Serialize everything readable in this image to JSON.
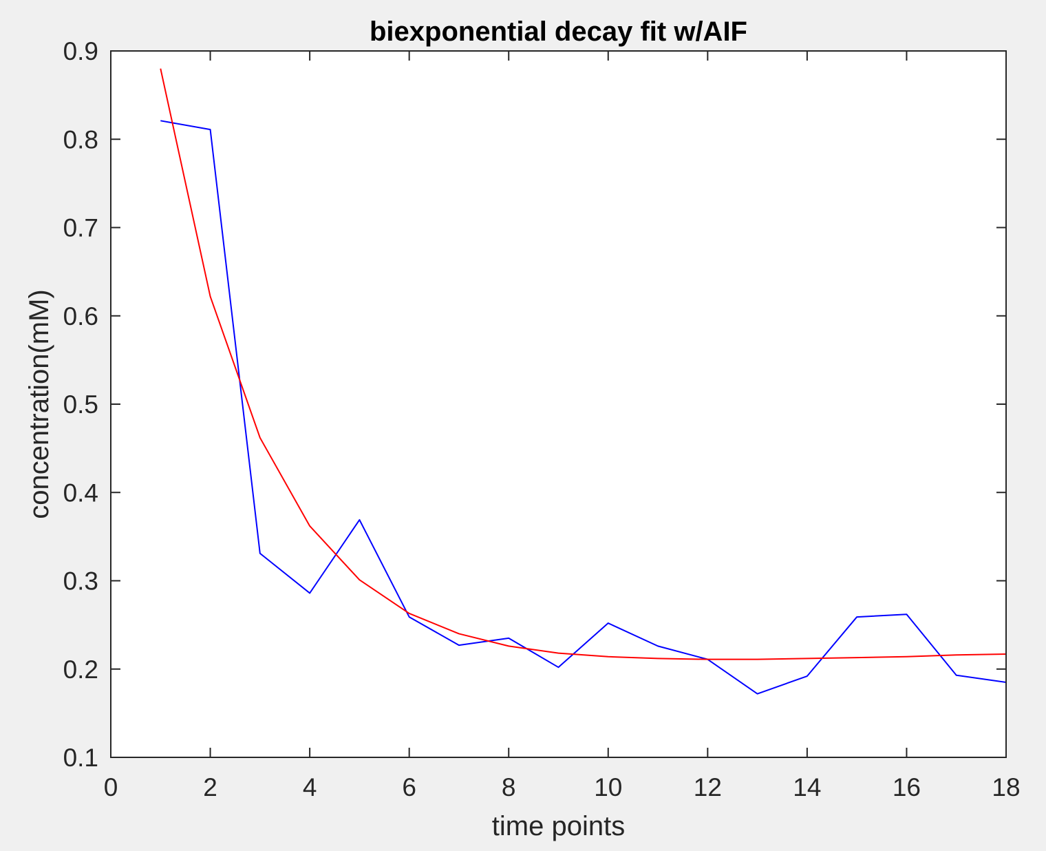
{
  "chart_data": {
    "type": "line",
    "title": "biexponential decay fit w/AIF",
    "xlabel": "time points",
    "ylabel": "concentration(mM)",
    "xlim": [
      0,
      18
    ],
    "ylim": [
      0.1,
      0.9
    ],
    "xticks": [
      0,
      2,
      4,
      6,
      8,
      10,
      12,
      14,
      16,
      18
    ],
    "yticks": [
      0.1,
      0.2,
      0.3,
      0.4,
      0.5,
      0.6,
      0.7,
      0.8,
      0.9
    ],
    "xtick_labels": [
      "0",
      "2",
      "4",
      "6",
      "8",
      "10",
      "12",
      "14",
      "16",
      "18"
    ],
    "ytick_labels": [
      "0.1",
      "0.2",
      "0.3",
      "0.4",
      "0.5",
      "0.6",
      "0.7",
      "0.8",
      "0.9"
    ],
    "grid": false,
    "legend": false,
    "series": [
      {
        "color": "#0000ff",
        "x": [
          1,
          2,
          3,
          4,
          5,
          6,
          7,
          8,
          9,
          10,
          11,
          12,
          13,
          14,
          15,
          16,
          17,
          18
        ],
        "y": [
          0.821,
          0.811,
          0.331,
          0.286,
          0.369,
          0.259,
          0.227,
          0.235,
          0.202,
          0.252,
          0.226,
          0.211,
          0.172,
          0.192,
          0.259,
          0.262,
          0.193,
          0.185
        ]
      },
      {
        "color": "#ff0000",
        "x": [
          1,
          2,
          3,
          4,
          5,
          6,
          7,
          8,
          9,
          10,
          11,
          12,
          13,
          14,
          15,
          16,
          17,
          18
        ],
        "y": [
          0.88,
          0.622,
          0.462,
          0.362,
          0.301,
          0.263,
          0.24,
          0.226,
          0.218,
          0.214,
          0.212,
          0.211,
          0.211,
          0.212,
          0.213,
          0.214,
          0.216,
          0.217
        ]
      }
    ]
  }
}
